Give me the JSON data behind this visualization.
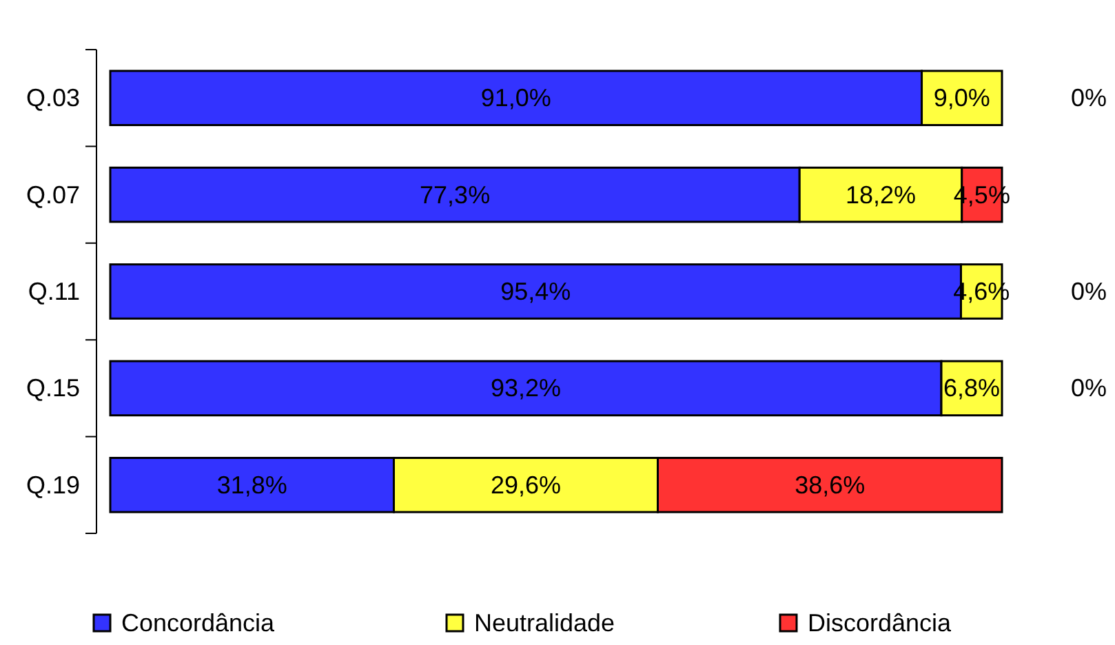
{
  "chart_data": {
    "type": "bar",
    "orientation": "horizontal",
    "stacked": true,
    "tick_labels": "y",
    "legend": "bottom",
    "xlim": [
      0,
      100
    ],
    "categories": [
      "Q.03",
      "Q.07",
      "Q.11",
      "Q.15",
      "Q.19"
    ],
    "series": [
      {
        "name": "Concordância",
        "color": "#3333ff",
        "values": [
          91.0,
          77.3,
          95.4,
          93.2,
          31.8
        ],
        "value_labels": [
          "91,0%",
          "77,3%",
          "95,4%",
          "93,2%",
          "31,8%"
        ]
      },
      {
        "name": "Neutralidade",
        "color": "#ffff40",
        "values": [
          9.0,
          18.2,
          4.6,
          6.8,
          29.6
        ],
        "value_labels": [
          "9,0%",
          "18,2%",
          "4,6%",
          "6,8%",
          "29,6%"
        ]
      },
      {
        "name": "Discordância",
        "color": "#ff3333",
        "values": [
          0,
          4.5,
          0,
          0,
          38.6
        ],
        "value_labels": [
          "0%",
          "4,5%",
          "0%",
          "0%",
          "38,6%"
        ]
      }
    ]
  }
}
